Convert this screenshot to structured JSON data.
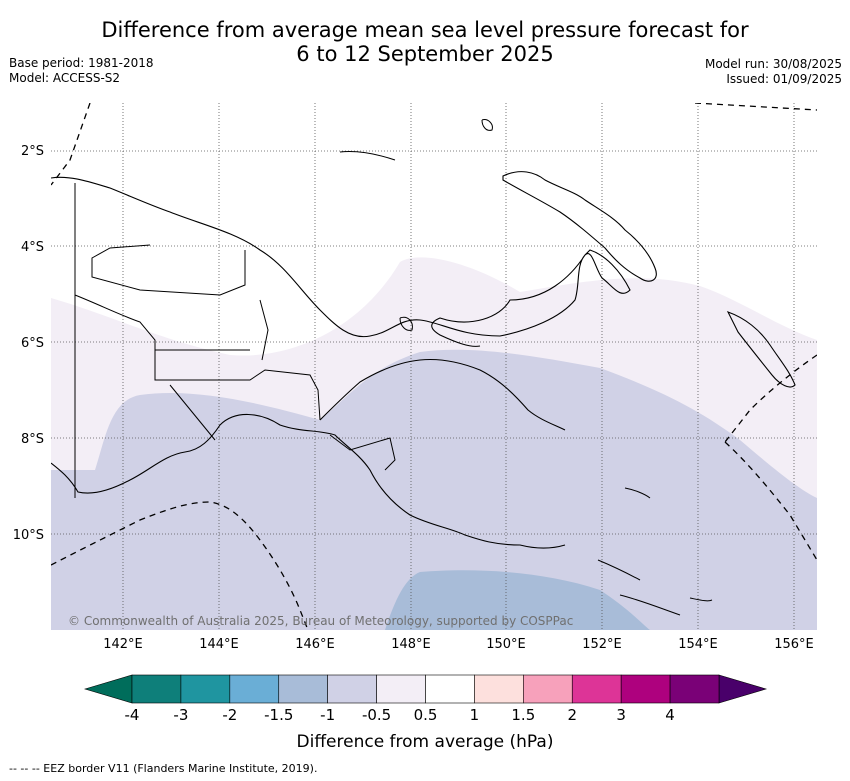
{
  "title_line1": "Difference from average mean sea level pressure forecast for",
  "title_line2": "6 to 12 September 2025",
  "meta": {
    "base_period": "Base period: 1981-2018",
    "model": "Model: ACCESS-S2",
    "model_run": "Model run: 30/08/2025",
    "issued": "Issued: 01/09/2025"
  },
  "map": {
    "lon_ticks": [
      "142°E",
      "144°E",
      "146°E",
      "148°E",
      "150°E",
      "152°E",
      "154°E",
      "156°E"
    ],
    "lat_ticks": [
      "2°S",
      "4°S",
      "6°S",
      "8°S",
      "10°S"
    ],
    "lon_range": [
      140.5,
      156.5
    ],
    "lat_range": [
      -1.0,
      -12.0
    ],
    "copyright": "© Commonwealth of Australia 2025, Bureau of Meteorology, supported by COSPPac"
  },
  "colorbar": {
    "title": "Difference from average (hPa)",
    "tick_labels": [
      "-4",
      "-3",
      "-2",
      "-1.5",
      "-1",
      "-0.5",
      "0.5",
      "1",
      "1.5",
      "2",
      "3",
      "4"
    ],
    "colors": [
      "#0e7f7a",
      "#1f95a0",
      "#6aaed6",
      "#a8bcd8",
      "#d0d1e6",
      "#f3eef6",
      "#ffffff",
      "#fde0dd",
      "#f7a1bb",
      "#dd3497",
      "#ae017e",
      "#7a0177"
    ],
    "min_color": "#006d5b",
    "max_color": "#49006a"
  },
  "footnote": "--  --  -- EEZ border V11 (Flanders Marine Institute, 2019)."
}
